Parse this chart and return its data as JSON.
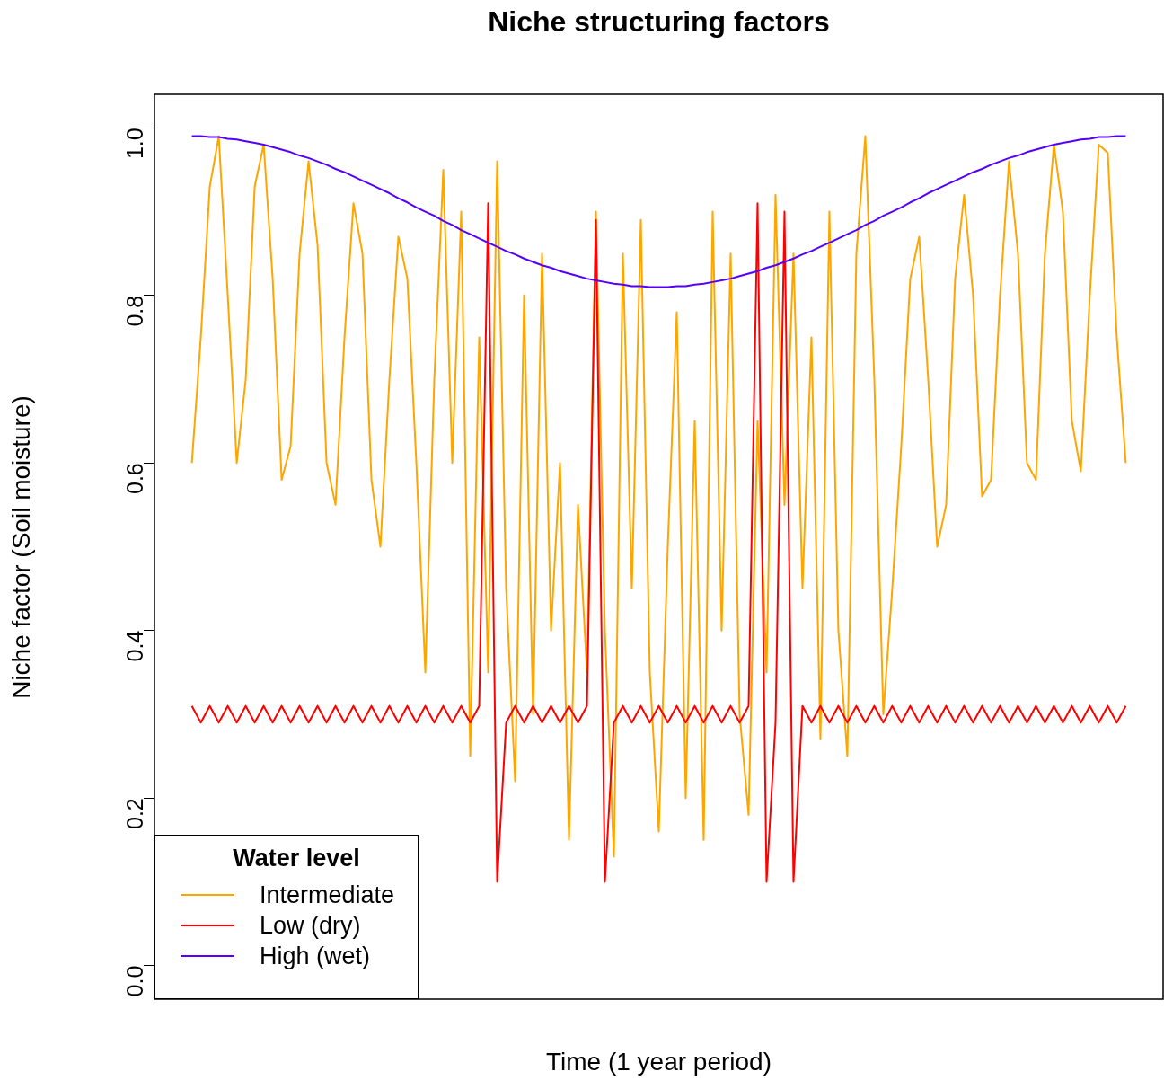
{
  "chart_data": {
    "type": "line",
    "title": "Niche structuring factors",
    "xlabel": "Time (1 year period)",
    "ylabel": "Niche factor (Soil moisture)",
    "legend_title": "Water level",
    "legend": "bottom left",
    "marker": "none",
    "tick_labels": "y",
    "categories": [
      null,
      null,
      null,
      null,
      null,
      null,
      null,
      null,
      null,
      null,
      null,
      null,
      null,
      null,
      null,
      null,
      null,
      null,
      null,
      null,
      null,
      null,
      null,
      null,
      null,
      null,
      null,
      null,
      null,
      null,
      null,
      null,
      null,
      null,
      null,
      null,
      null,
      null,
      null,
      null,
      null,
      null,
      null,
      null,
      null,
      null,
      null,
      null,
      null,
      null,
      null,
      null,
      null,
      null,
      null,
      null,
      null,
      null,
      null,
      null,
      null,
      null,
      null,
      null,
      null,
      null,
      null,
      null,
      null,
      null,
      null,
      null,
      null,
      null,
      null,
      null,
      null,
      null,
      null,
      null,
      null,
      null,
      null,
      null,
      null,
      null,
      null,
      null,
      null,
      null,
      null,
      null,
      null,
      null,
      null,
      null,
      null,
      null,
      null,
      null,
      null,
      null,
      null,
      null,
      null
    ],
    "ylim": [
      -0.04,
      1.04
    ],
    "yticks": [
      {
        "value": 0,
        "label": "0.0"
      },
      {
        "value": 0.2,
        "label": "0.2"
      },
      {
        "value": 0.4,
        "label": "0.4"
      },
      {
        "value": 0.6,
        "label": "0.6"
      },
      {
        "value": 0.8,
        "label": "0.8"
      },
      {
        "value": 1,
        "label": "1.0"
      }
    ],
    "series": [
      {
        "name": "Intermediate",
        "color": "#ffa500",
        "values": [
          0.6,
          0.75,
          0.93,
          0.99,
          0.8,
          0.6,
          0.7,
          0.93,
          0.98,
          0.82,
          0.58,
          0.62,
          0.85,
          0.96,
          0.86,
          0.6,
          0.55,
          0.75,
          0.91,
          0.85,
          0.58,
          0.5,
          0.7,
          0.87,
          0.82,
          0.6,
          0.35,
          0.7,
          0.95,
          0.6,
          0.9,
          0.25,
          0.75,
          0.35,
          0.96,
          0.45,
          0.22,
          0.8,
          0.3,
          0.85,
          0.4,
          0.6,
          0.15,
          0.55,
          0.35,
          0.9,
          0.4,
          0.13,
          0.85,
          0.45,
          0.89,
          0.35,
          0.16,
          0.5,
          0.78,
          0.2,
          0.65,
          0.15,
          0.9,
          0.4,
          0.85,
          0.3,
          0.18,
          0.65,
          0.35,
          0.92,
          0.55,
          0.85,
          0.45,
          0.75,
          0.27,
          0.9,
          0.4,
          0.25,
          0.85,
          0.99,
          0.7,
          0.3,
          0.45,
          0.62,
          0.82,
          0.87,
          0.7,
          0.5,
          0.55,
          0.82,
          0.92,
          0.8,
          0.56,
          0.58,
          0.8,
          0.96,
          0.85,
          0.6,
          0.58,
          0.85,
          0.98,
          0.9,
          0.65,
          0.59,
          0.8,
          0.98,
          0.97,
          0.75,
          0.6
        ]
      },
      {
        "name": "Low (dry)",
        "color": "#ff0000",
        "values": [
          0.31,
          0.29,
          0.31,
          0.29,
          0.31,
          0.29,
          0.31,
          0.29,
          0.31,
          0.29,
          0.31,
          0.29,
          0.31,
          0.29,
          0.31,
          0.29,
          0.31,
          0.29,
          0.31,
          0.29,
          0.31,
          0.29,
          0.31,
          0.29,
          0.31,
          0.29,
          0.31,
          0.29,
          0.31,
          0.29,
          0.31,
          0.29,
          0.31,
          0.91,
          0.1,
          0.29,
          0.31,
          0.29,
          0.31,
          0.29,
          0.31,
          0.29,
          0.31,
          0.29,
          0.31,
          0.89,
          0.1,
          0.29,
          0.31,
          0.29,
          0.31,
          0.29,
          0.31,
          0.29,
          0.31,
          0.29,
          0.31,
          0.29,
          0.31,
          0.29,
          0.31,
          0.29,
          0.31,
          0.91,
          0.1,
          0.29,
          0.9,
          0.1,
          0.31,
          0.29,
          0.31,
          0.29,
          0.31,
          0.29,
          0.31,
          0.29,
          0.31,
          0.29,
          0.31,
          0.29,
          0.31,
          0.29,
          0.31,
          0.29,
          0.31,
          0.29,
          0.31,
          0.29,
          0.31,
          0.29,
          0.31,
          0.29,
          0.31,
          0.29,
          0.31,
          0.29,
          0.31,
          0.29,
          0.31,
          0.29,
          0.31,
          0.29,
          0.31,
          0.29,
          0.31
        ]
      },
      {
        "name": "High (wet)",
        "color": "#5500ff",
        "values": [
          0.99,
          0.99,
          0.989,
          0.989,
          0.987,
          0.986,
          0.984,
          0.982,
          0.98,
          0.977,
          0.974,
          0.971,
          0.967,
          0.964,
          0.96,
          0.956,
          0.951,
          0.947,
          0.942,
          0.937,
          0.932,
          0.927,
          0.922,
          0.916,
          0.911,
          0.905,
          0.9,
          0.895,
          0.889,
          0.884,
          0.878,
          0.873,
          0.868,
          0.863,
          0.858,
          0.853,
          0.849,
          0.844,
          0.84,
          0.836,
          0.833,
          0.829,
          0.826,
          0.823,
          0.82,
          0.818,
          0.816,
          0.814,
          0.813,
          0.811,
          0.811,
          0.81,
          0.81,
          0.81,
          0.811,
          0.811,
          0.813,
          0.814,
          0.816,
          0.818,
          0.82,
          0.823,
          0.826,
          0.829,
          0.833,
          0.836,
          0.84,
          0.844,
          0.849,
          0.853,
          0.858,
          0.863,
          0.868,
          0.873,
          0.878,
          0.884,
          0.889,
          0.895,
          0.9,
          0.905,
          0.911,
          0.916,
          0.922,
          0.927,
          0.932,
          0.937,
          0.942,
          0.947,
          0.951,
          0.956,
          0.96,
          0.964,
          0.967,
          0.971,
          0.974,
          0.977,
          0.98,
          0.982,
          0.984,
          0.986,
          0.987,
          0.989,
          0.989,
          0.99,
          0.99
        ]
      }
    ]
  }
}
